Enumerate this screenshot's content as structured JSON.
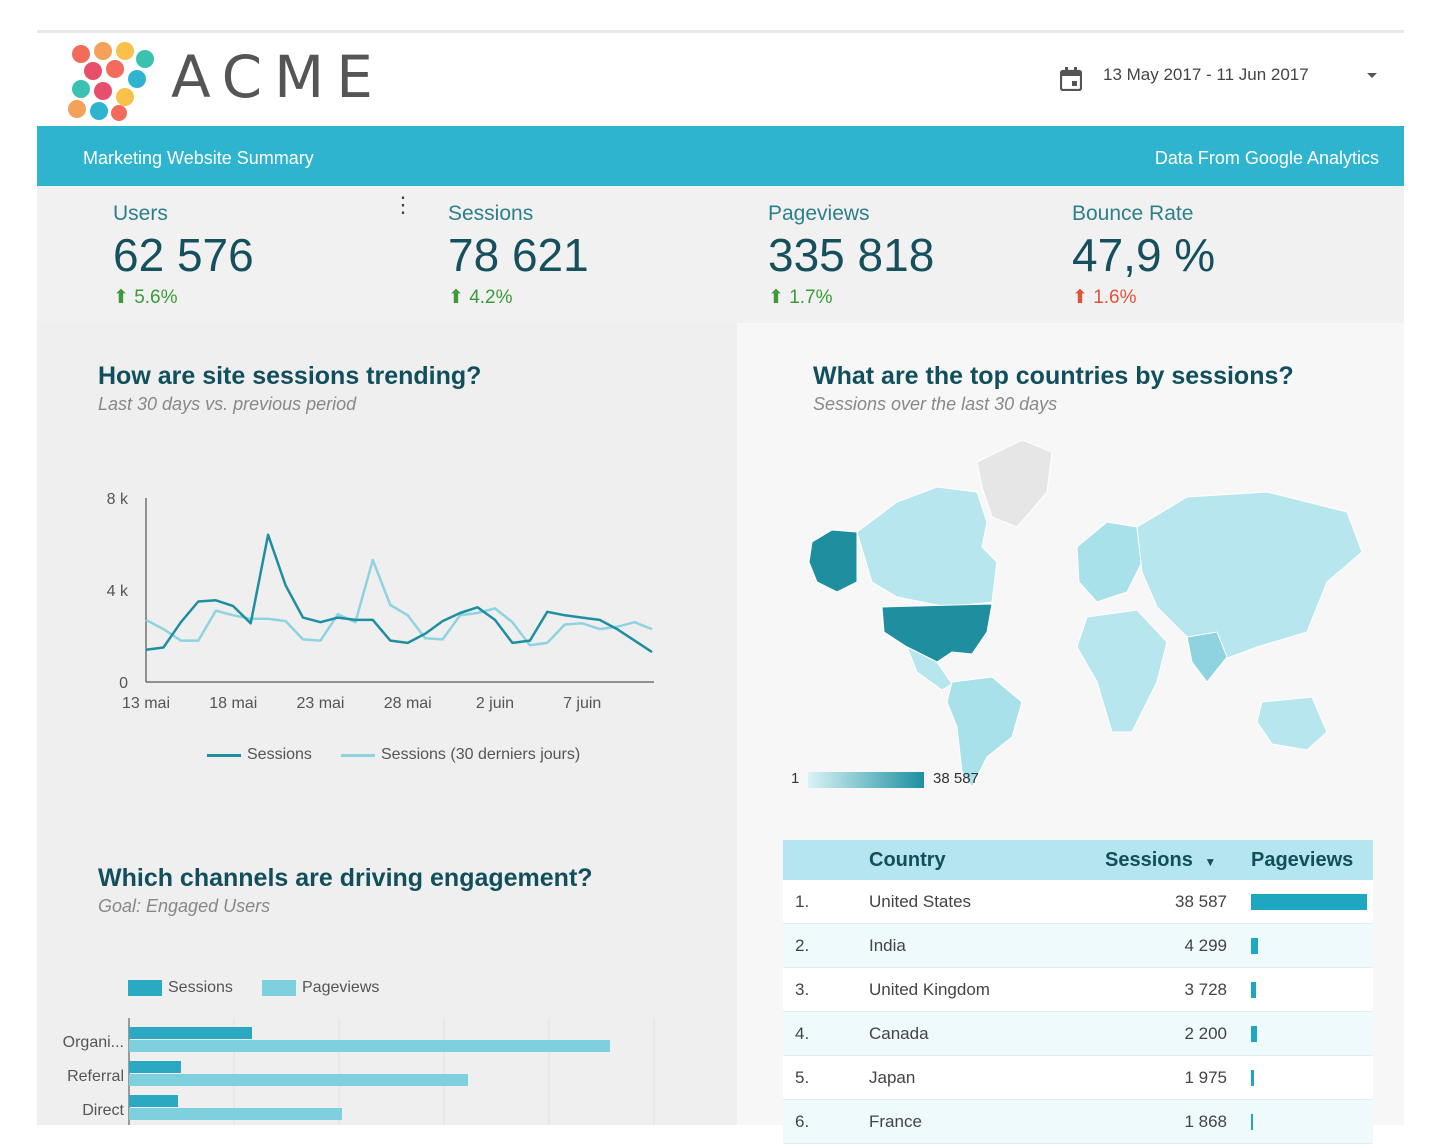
{
  "header": {
    "brand": "ACME",
    "date_range": "13 May 2017 - 11 Jun 2017",
    "subtitle_left": "Marketing Website Summary",
    "subtitle_right": "Data From Google Analytics"
  },
  "kpis": [
    {
      "label": "Users",
      "value": "62 576",
      "delta": "5.6%"
    },
    {
      "label": "Sessions",
      "value": "78 621",
      "delta": "4.2%"
    },
    {
      "label": "Pageviews",
      "value": "335 818",
      "delta": "1.7%"
    },
    {
      "label": "Bounce Rate",
      "value": "47,9 %",
      "delta": "1.6%"
    }
  ],
  "colors": {
    "accent": "#2eb4cf",
    "dark": "#1e8fa0",
    "light": "#8fd3e0",
    "good": "#3c9a3c",
    "bad": "#e0533a"
  },
  "trend": {
    "title": "How are site sessions trending?",
    "subtitle": "Last 30 days vs. previous period"
  },
  "countries_section": {
    "title": "What are the top countries by sessions?",
    "subtitle": "Sessions over the last 30 days",
    "legend_min": "1",
    "legend_max": "38 587"
  },
  "channels": {
    "title": "Which channels are driving engagement?",
    "subtitle": "Goal: Engaged Users"
  },
  "table": {
    "headers": [
      "Country",
      "Sessions",
      "Pageviews"
    ],
    "rows": [
      {
        "rank": "1.",
        "country": "United States",
        "sessions": "38 587",
        "pv": 1.0
      },
      {
        "rank": "2.",
        "country": "India",
        "sessions": "4 299",
        "pv": 0.06
      },
      {
        "rank": "3.",
        "country": "United Kingdom",
        "sessions": "3 728",
        "pv": 0.04
      },
      {
        "rank": "4.",
        "country": "Canada",
        "sessions": "2 200",
        "pv": 0.05
      },
      {
        "rank": "5.",
        "country": "Japan",
        "sessions": "1 975",
        "pv": 0.03
      },
      {
        "rank": "6.",
        "country": "France",
        "sessions": "1 868",
        "pv": 0.02
      }
    ]
  },
  "chart_data": [
    {
      "type": "line",
      "title": "",
      "x": [
        "13 mai",
        "14 mai",
        "15 mai",
        "16 mai",
        "17 mai",
        "18 mai",
        "19 mai",
        "20 mai",
        "21 mai",
        "22 mai",
        "23 mai",
        "24 mai",
        "25 mai",
        "26 mai",
        "27 mai",
        "28 mai",
        "29 mai",
        "30 mai",
        "31 mai",
        "1 juin",
        "2 juin",
        "3 juin",
        "4 juin",
        "5 juin",
        "6 juin",
        "7 juin",
        "8 juin",
        "9 juin",
        "10 juin",
        "11 juin"
      ],
      "xticks": [
        "13 mai",
        "18 mai",
        "23 mai",
        "28 mai",
        "2 juin",
        "7 juin"
      ],
      "yticks": [
        "0",
        "4 k",
        "8 k"
      ],
      "ylim": [
        0,
        8000
      ],
      "series": [
        {
          "name": "Sessions",
          "values": [
            1400,
            1500,
            2600,
            3500,
            3550,
            3300,
            2550,
            6400,
            4200,
            2800,
            2600,
            2800,
            2700,
            2700,
            1800,
            1700,
            2100,
            2650,
            3000,
            3250,
            2700,
            1700,
            1800,
            3050,
            2900,
            2800,
            2700,
            2300,
            1800,
            1300
          ]
        },
        {
          "name": "Sessions (30 derniers jours)",
          "values": [
            2700,
            2300,
            1800,
            1800,
            3100,
            2900,
            2750,
            2750,
            2650,
            1850,
            1800,
            2950,
            2600,
            5300,
            3350,
            2900,
            1900,
            1850,
            2900,
            3000,
            3200,
            2600,
            1600,
            1700,
            2500,
            2550,
            2300,
            2400,
            2600,
            2300
          ]
        }
      ]
    },
    {
      "type": "bar",
      "orientation": "horizontal",
      "categories": [
        "Organi...",
        "Referral",
        "Direct"
      ],
      "series": [
        {
          "name": "Sessions",
          "values": [
            123,
            52,
            49
          ]
        },
        {
          "name": "Pageviews",
          "values": [
            481,
            339,
            213
          ]
        }
      ]
    }
  ]
}
